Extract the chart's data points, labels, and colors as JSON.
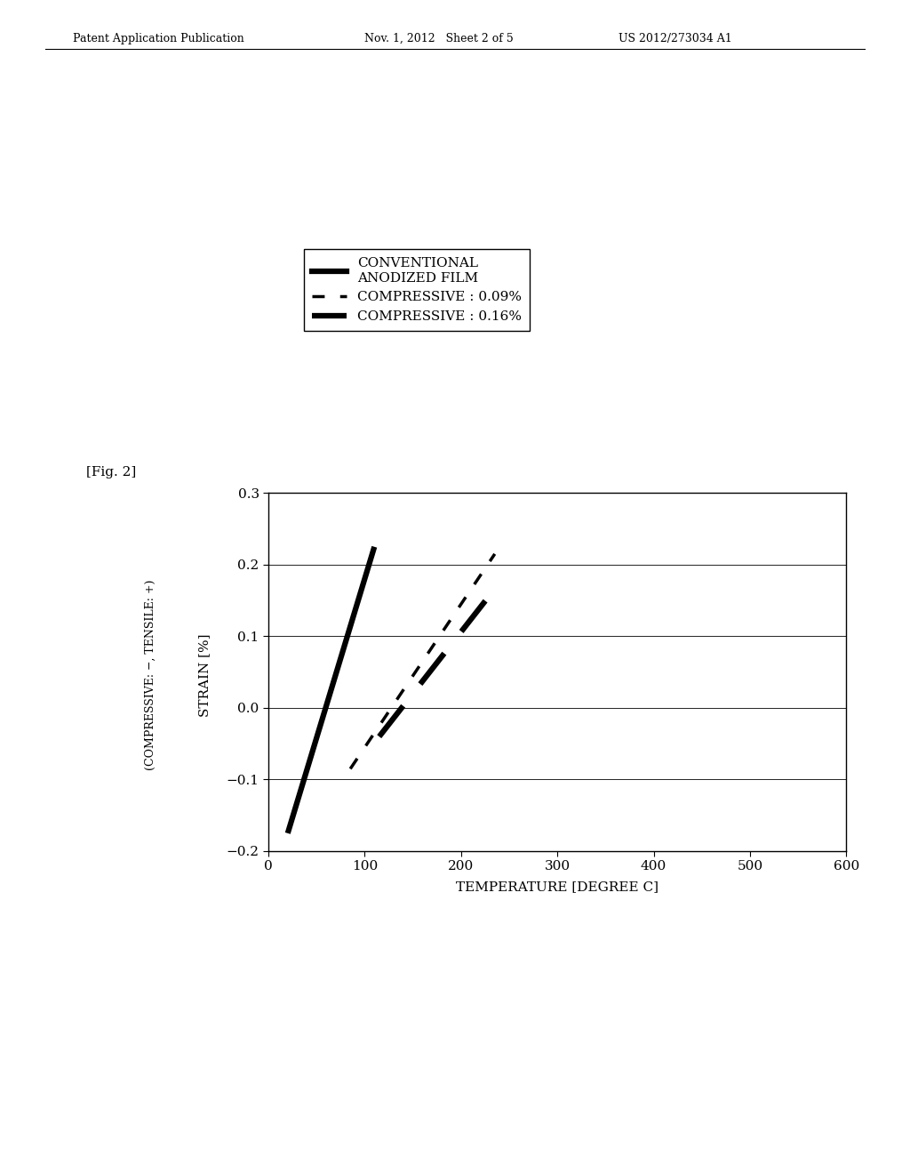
{
  "header_left": "Patent Application Publication",
  "header_mid": "Nov. 1, 2012   Sheet 2 of 5",
  "header_right": "US 2012/273034 A1",
  "fig_label": "[Fig. 2]",
  "xlabel": "TEMPERATURE [DEGREE C]",
  "ylabel": "STRAIN [%]",
  "ylabel2": "(COMPRESSIVE: −, TENSILE: +)",
  "xlim": [
    0,
    600
  ],
  "ylim": [
    -0.2,
    0.3
  ],
  "xticks": [
    0,
    100,
    200,
    300,
    400,
    500,
    600
  ],
  "yticks": [
    -0.2,
    -0.1,
    0,
    0.1,
    0.2,
    0.3
  ],
  "line1_x": [
    20,
    110
  ],
  "line1_y": [
    -0.175,
    0.225
  ],
  "line2_x": [
    85,
    235
  ],
  "line2_y": [
    -0.085,
    0.215
  ],
  "line3_x": [
    115,
    240
  ],
  "line3_y": [
    -0.04,
    0.175
  ],
  "background_color": "#ffffff",
  "line_color": "#000000"
}
